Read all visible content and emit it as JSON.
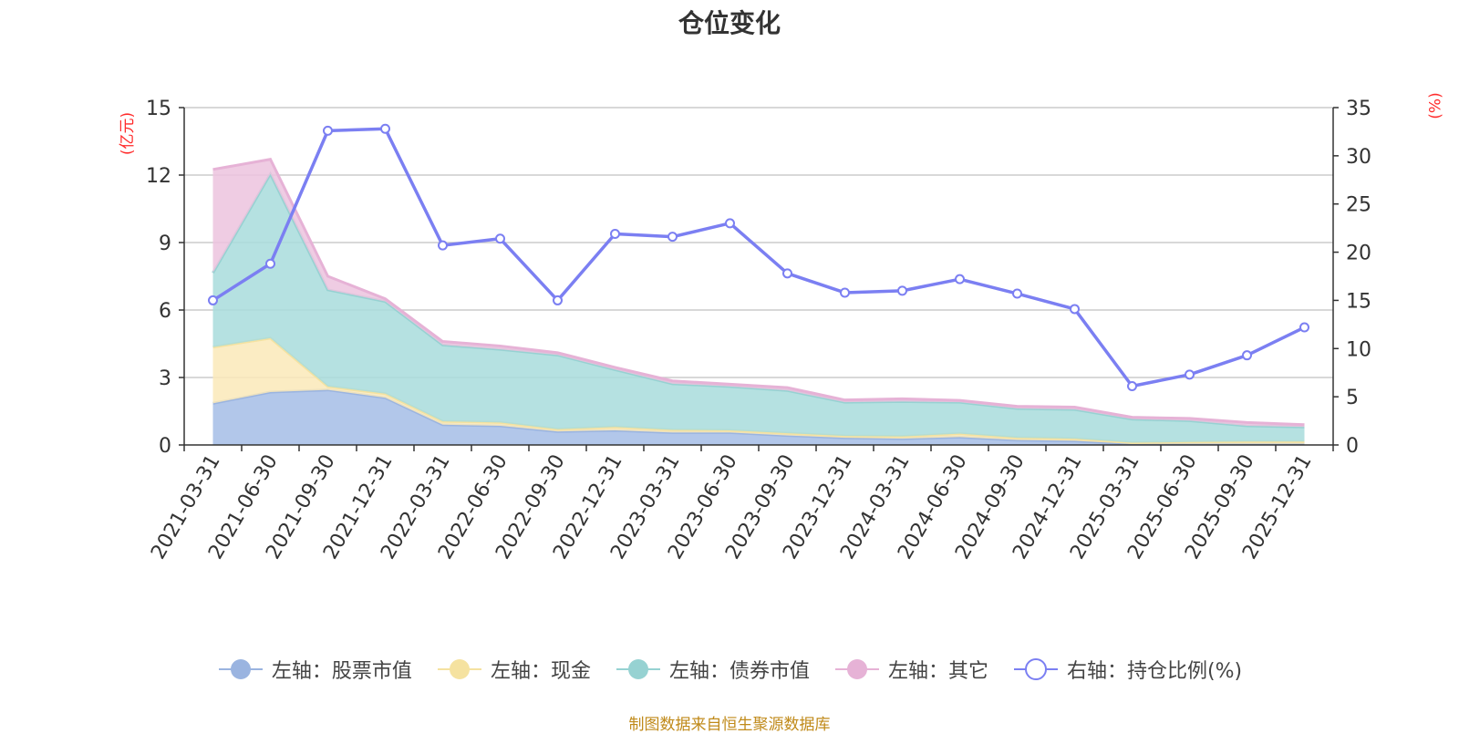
{
  "title": "仓位变化",
  "source": "制图数据来自恒生聚源数据库",
  "chart_data": {
    "type": "area",
    "categories": [
      "2021-03-31",
      "2021-06-30",
      "2021-09-30",
      "2021-12-31",
      "2022-03-31",
      "2022-06-30",
      "2022-09-30",
      "2022-12-31",
      "2023-03-31",
      "2023-06-30",
      "2023-09-30",
      "2023-12-31",
      "2024-03-31",
      "2024-06-30",
      "2024-09-30",
      "2024-12-31",
      "2025-03-31",
      "2025-06-30",
      "2025-09-30",
      "2025-12-31"
    ],
    "left_axis": {
      "unit": "(亿元)",
      "ylim": [
        0,
        15
      ],
      "ticks": [
        0,
        3,
        6,
        9,
        12,
        15
      ]
    },
    "right_axis": {
      "unit": "(%)",
      "ylim": [
        0,
        35
      ],
      "ticks": [
        0,
        5,
        10,
        15,
        20,
        25,
        30,
        35
      ]
    },
    "series": [
      {
        "name": "左轴：股票市值",
        "axis": "left",
        "kind": "stacked-area",
        "color": "#a4bde6",
        "stroke": "#9ab4e0",
        "values": [
          1.85,
          2.35,
          2.45,
          2.1,
          0.9,
          0.85,
          0.6,
          0.65,
          0.55,
          0.55,
          0.42,
          0.32,
          0.28,
          0.35,
          0.22,
          0.18,
          0.05,
          0.05,
          0.05,
          0.05
        ]
      },
      {
        "name": "左轴：现金",
        "axis": "left",
        "kind": "stacked-area",
        "color": "#fae9b8",
        "stroke": "#f5e2a0",
        "values": [
          2.5,
          2.4,
          0.15,
          0.18,
          0.15,
          0.15,
          0.1,
          0.15,
          0.12,
          0.1,
          0.1,
          0.08,
          0.1,
          0.15,
          0.1,
          0.1,
          0.05,
          0.08,
          0.1,
          0.1
        ]
      },
      {
        "name": "左轴：债券市值",
        "axis": "left",
        "kind": "stacked-area",
        "color": "#a8dcdc",
        "stroke": "#96d2d2",
        "values": [
          3.3,
          7.3,
          4.3,
          4.1,
          3.4,
          3.25,
          3.3,
          2.55,
          2.05,
          1.95,
          1.9,
          1.5,
          1.55,
          1.4,
          1.3,
          1.3,
          1.05,
          0.95,
          0.7,
          0.65
        ]
      },
      {
        "name": "左轴：其它",
        "axis": "left",
        "kind": "stacked-area",
        "color": "#ecc3de",
        "stroke": "#e6b2d6",
        "values": [
          4.6,
          0.65,
          0.6,
          0.12,
          0.15,
          0.15,
          0.1,
          0.1,
          0.13,
          0.1,
          0.13,
          0.1,
          0.12,
          0.08,
          0.1,
          0.1,
          0.08,
          0.1,
          0.15,
          0.1
        ]
      },
      {
        "name": "右轴：持仓比例(%)",
        "axis": "right",
        "kind": "line",
        "color": "#7b7ff2",
        "values": [
          15.0,
          18.8,
          32.6,
          32.8,
          20.7,
          21.4,
          15.0,
          21.9,
          21.6,
          23.0,
          17.8,
          15.8,
          16.0,
          17.2,
          15.7,
          14.1,
          6.1,
          7.3,
          9.3,
          12.2
        ]
      }
    ]
  }
}
